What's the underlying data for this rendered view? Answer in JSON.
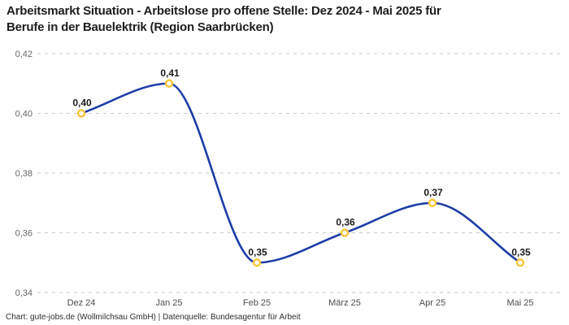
{
  "header": {
    "title_line1": "Arbeitsmarkt Situation - Arbeitslose pro offene Stelle: Dez 2024 - Mai 2025 für",
    "title_line2": "Berufe in der Bauelektrik (Region Saarbrücken)"
  },
  "footer": {
    "credit": "Chart: gute-jobs.de (Wollmilchsau GmbH) | Datenquelle: Bundesagentur für Arbeit"
  },
  "chart_data": {
    "type": "line",
    "title": "Arbeitsmarkt Situation - Arbeitslose pro offene Stelle: Dez 2024 - Mai 2025 für Berufe in der Bauelektrik (Region Saarbrücken)",
    "categories": [
      "Dez 24",
      "Jan 25",
      "Feb 25",
      "März 25",
      "Apr 25",
      "Mai 25"
    ],
    "values": [
      0.4,
      0.41,
      0.35,
      0.36,
      0.37,
      0.35
    ],
    "value_labels": [
      "0,40",
      "0,41",
      "0,35",
      "0,36",
      "0,37",
      "0,35"
    ],
    "y_tick_values": [
      0.34,
      0.36,
      0.38,
      0.4,
      0.42
    ],
    "y_tick_labels": [
      "0,34",
      "0,36",
      "0,38",
      "0,40",
      "0,42"
    ],
    "ylim": [
      0.34,
      0.42
    ],
    "xlabel": "",
    "ylabel": "",
    "legend": "none",
    "grid": "horizontal-dashed",
    "smooth": true,
    "colors": {
      "line": "#1e3da6",
      "marker_stroke": "#fdc435",
      "marker_fill": "#ffffff",
      "grid": "#cbcbcb",
      "y_tick_label": "#676767",
      "x_tick_label": "#4d4d4d",
      "data_label": "#1a1a1a"
    }
  }
}
